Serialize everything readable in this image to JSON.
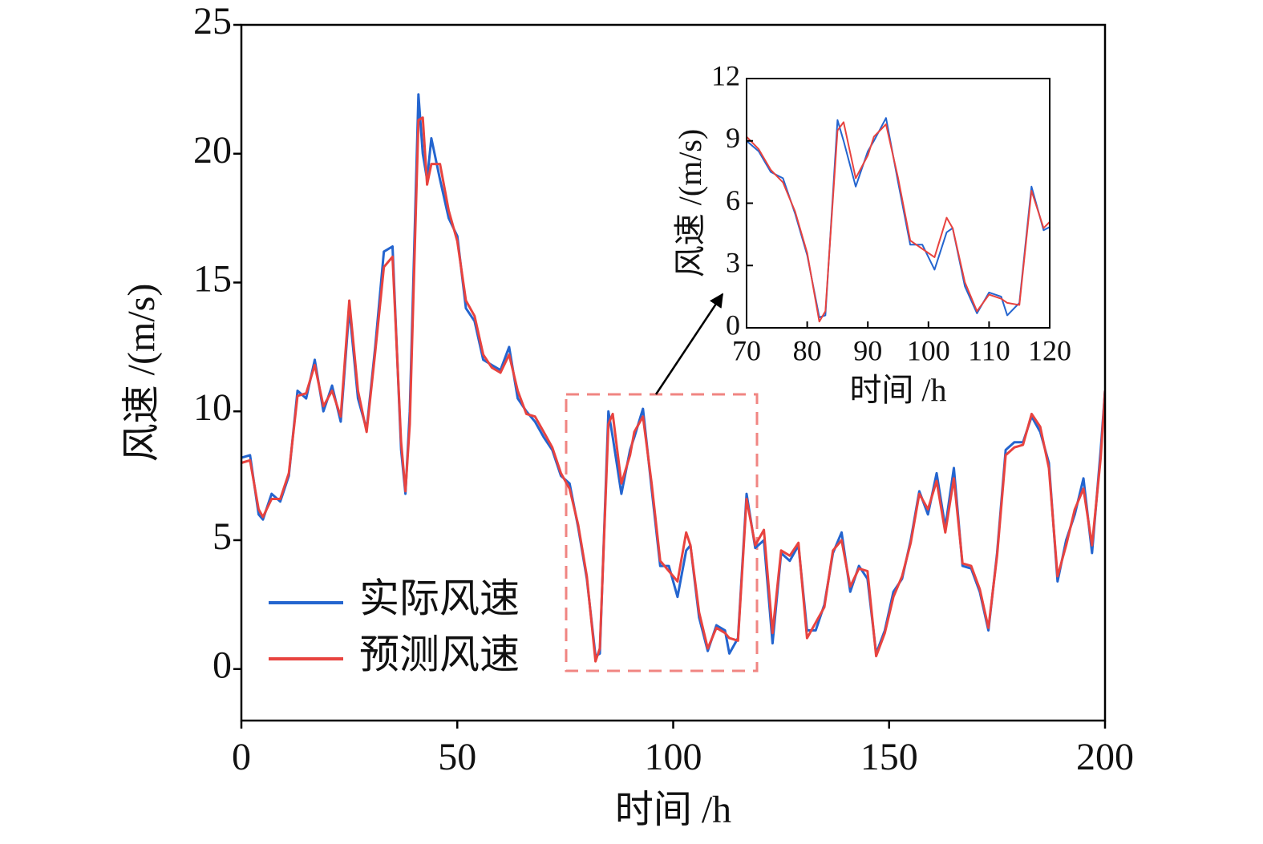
{
  "chart_data": [
    {
      "type": "line",
      "x_label": "时间 /h",
      "y_label": "风速 /(m/s)",
      "xlim": [
        0,
        200
      ],
      "xticks": [
        0,
        50,
        100,
        150,
        200
      ],
      "ylim": [
        -2,
        25
      ],
      "yticks": [
        0,
        5,
        10,
        15,
        20,
        25
      ],
      "legend": "lower left",
      "x": [
        0,
        2,
        4,
        5,
        7,
        9,
        11,
        13,
        15,
        17,
        19,
        21,
        23,
        25,
        27,
        29,
        31,
        33,
        35,
        37,
        38,
        39,
        41,
        42,
        43,
        44,
        46,
        48,
        50,
        52,
        54,
        56,
        58,
        60,
        62,
        64,
        66,
        68,
        70,
        72,
        74,
        76,
        78,
        80,
        82,
        83,
        85,
        86,
        88,
        90,
        91,
        93,
        95,
        97,
        99,
        101,
        103,
        104,
        106,
        108,
        110,
        112,
        113,
        115,
        117,
        119,
        121,
        123,
        125,
        127,
        129,
        131,
        133,
        135,
        137,
        139,
        141,
        143,
        145,
        147,
        149,
        151,
        153,
        155,
        157,
        159,
        161,
        163,
        165,
        167,
        169,
        171,
        173,
        175,
        177,
        179,
        181,
        183,
        185,
        187,
        189,
        191,
        193,
        195,
        197,
        199,
        200
      ],
      "series": [
        {
          "name": "实际风速",
          "color": "#2465cf",
          "values": [
            8.2,
            8.3,
            6.0,
            5.8,
            6.8,
            6.5,
            7.5,
            10.8,
            10.5,
            12.0,
            10.0,
            11.0,
            9.6,
            14.0,
            10.5,
            9.3,
            12.5,
            16.2,
            16.4,
            8.5,
            6.8,
            10.0,
            22.3,
            20.0,
            19.0,
            20.6,
            19.0,
            17.5,
            16.8,
            14.0,
            13.5,
            12.0,
            11.8,
            11.6,
            12.5,
            10.5,
            10.0,
            9.6,
            9.0,
            8.5,
            7.5,
            7.2,
            5.5,
            3.5,
            0.5,
            0.6,
            10.0,
            9.0,
            6.8,
            8.5,
            9.0,
            10.1,
            7.0,
            4.0,
            4.0,
            2.8,
            4.6,
            4.8,
            2.0,
            0.7,
            1.7,
            1.5,
            0.6,
            1.2,
            6.8,
            4.7,
            5.0,
            1.0,
            4.5,
            4.2,
            4.8,
            1.5,
            1.5,
            2.5,
            4.5,
            5.3,
            3.0,
            4.0,
            3.5,
            0.6,
            1.5,
            3.0,
            3.5,
            5.0,
            6.9,
            6.0,
            7.6,
            5.5,
            7.8,
            4.0,
            3.9,
            3.0,
            1.5,
            4.5,
            8.5,
            8.8,
            8.8,
            9.8,
            9.2,
            8.0,
            3.4,
            5.0,
            6.0,
            7.4,
            4.5,
            8.5,
            10.8
          ]
        },
        {
          "name": "预测风速",
          "color": "#e8433f",
          "values": [
            8.0,
            8.1,
            6.2,
            5.9,
            6.6,
            6.6,
            7.6,
            10.6,
            10.7,
            11.8,
            10.2,
            10.8,
            9.8,
            14.3,
            10.8,
            9.2,
            12.3,
            15.6,
            16.0,
            8.8,
            6.9,
            9.5,
            21.3,
            21.4,
            18.8,
            19.6,
            19.6,
            17.8,
            16.6,
            14.3,
            13.7,
            12.2,
            11.7,
            11.5,
            12.2,
            10.8,
            9.9,
            9.8,
            9.2,
            8.6,
            7.6,
            7.0,
            5.6,
            3.6,
            0.3,
            0.8,
            9.5,
            9.9,
            7.2,
            8.3,
            9.2,
            9.8,
            7.2,
            4.2,
            3.8,
            3.4,
            5.3,
            4.8,
            2.2,
            0.8,
            1.6,
            1.4,
            1.2,
            1.1,
            6.6,
            4.8,
            5.4,
            1.4,
            4.6,
            4.4,
            4.9,
            1.2,
            1.8,
            2.4,
            4.6,
            5.0,
            3.2,
            3.9,
            3.8,
            0.5,
            1.4,
            2.8,
            3.6,
            4.9,
            6.8,
            6.2,
            7.3,
            5.3,
            7.4,
            4.1,
            4.0,
            3.1,
            1.6,
            4.4,
            8.3,
            8.6,
            8.7,
            9.9,
            9.4,
            7.8,
            3.6,
            4.8,
            6.2,
            7.0,
            4.8,
            8.2,
            10.8
          ]
        }
      ]
    },
    {
      "type": "inset",
      "x_label": "时间 /h",
      "y_label": "风速 /(m/s)",
      "xlim": [
        70,
        120
      ],
      "xticks": [
        70,
        80,
        90,
        100,
        110,
        120
      ],
      "ylim": [
        0,
        12
      ],
      "yticks": [
        0,
        3,
        6,
        9,
        12
      ]
    }
  ]
}
